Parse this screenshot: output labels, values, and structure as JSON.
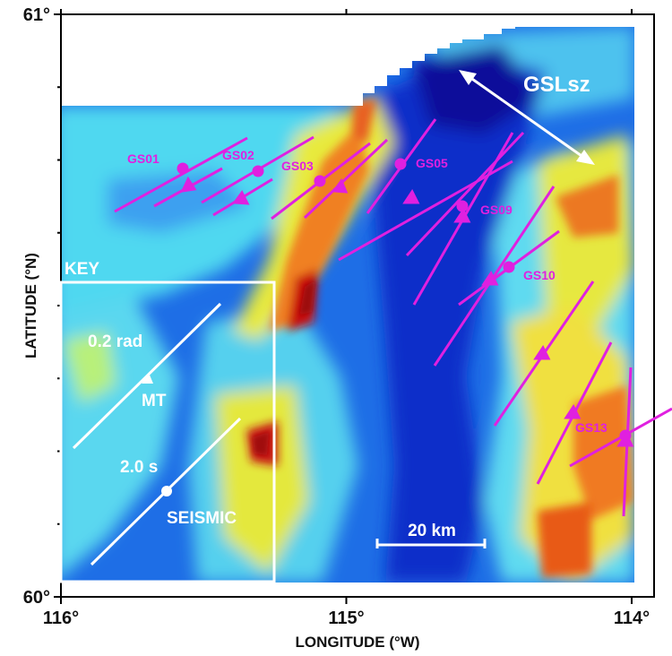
{
  "axes": {
    "x_label": "LONGITUDE (°W)",
    "y_label": "LATITUDE (°N)",
    "x_ticks": [
      {
        "value": 116,
        "label": "116°"
      },
      {
        "value": 115,
        "label": "115°"
      },
      {
        "value": 114,
        "label": "114°"
      }
    ],
    "y_ticks": [
      {
        "value": 61,
        "label": "61°"
      },
      {
        "value": 60,
        "label": "60°"
      }
    ]
  },
  "zone": {
    "label": "GSLsz"
  },
  "stations": [
    {
      "id": "GS01",
      "label": "GS01"
    },
    {
      "id": "GS02",
      "label": "GS02"
    },
    {
      "id": "GS03",
      "label": "GS03"
    },
    {
      "id": "GS05",
      "label": "GS05"
    },
    {
      "id": "GS09",
      "label": "GS09"
    },
    {
      "id": "GS10",
      "label": "GS10"
    },
    {
      "id": "GS13",
      "label": "GS13"
    }
  ],
  "scale_bar": {
    "label": "20 km"
  },
  "key": {
    "title": "KEY",
    "mt_value": "0.2 rad",
    "mt_label": "MT",
    "seismic_value": "2.0 s",
    "seismic_label": "SEISMIC"
  },
  "colors": {
    "marker": "#e020e0",
    "frame": "#000000",
    "key_white": "#ffffff"
  }
}
